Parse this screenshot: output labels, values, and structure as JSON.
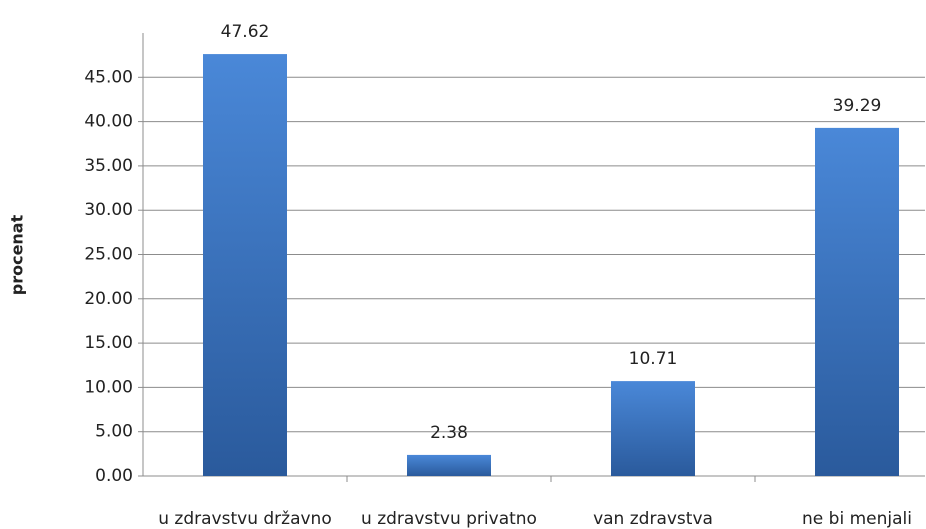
{
  "chart_data": {
    "type": "bar",
    "y_label": "procenat",
    "categories": [
      "u zdravstvu državno",
      "u zdravstvu privatno",
      "van zdravstva",
      "ne bi menjali"
    ],
    "values": [
      47.62,
      2.38,
      10.71,
      39.29
    ],
    "color": "#3a74c4",
    "ylim": [
      0,
      50
    ],
    "yticks": [
      {
        "value": 0,
        "label": "0.00"
      },
      {
        "value": 5,
        "label": "5.00"
      },
      {
        "value": 10,
        "label": "10.00"
      },
      {
        "value": 15,
        "label": "15.00"
      },
      {
        "value": 20,
        "label": "20.00"
      },
      {
        "value": 25,
        "label": "25.00"
      },
      {
        "value": 30,
        "label": "30.00"
      },
      {
        "value": 35,
        "label": "35.00"
      },
      {
        "value": 40,
        "label": "40.00"
      },
      {
        "value": 45,
        "label": "45.00"
      }
    ],
    "grid": true
  }
}
